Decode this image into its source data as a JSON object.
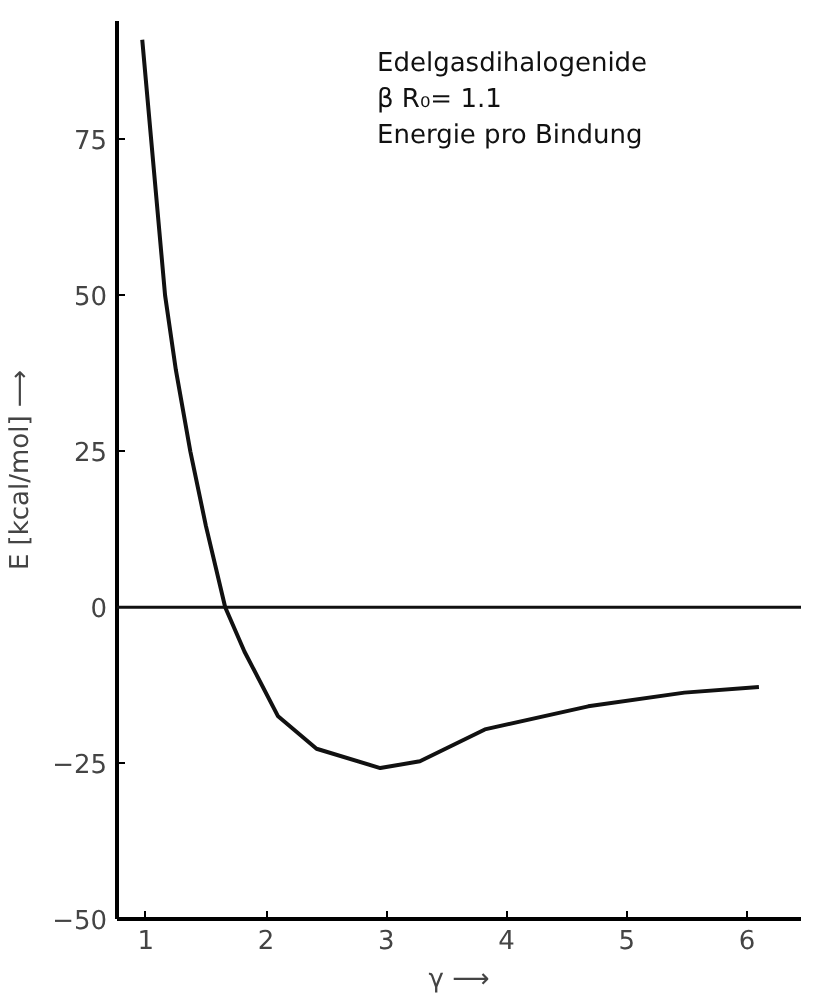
{
  "chart_data": {
    "type": "line",
    "xlabel": "γ ⟶",
    "ylabel": "E [kcal/mol] ⟶",
    "annotations": [
      "Edelgasdihalogenide",
      "β R₀= 1.1",
      "Energie pro Bindung"
    ],
    "x": [
      0.97,
      1.16,
      1.25,
      1.37,
      1.5,
      1.66,
      1.82,
      2.1,
      2.42,
      2.95,
      3.28,
      3.82,
      4.68,
      5.48,
      6.1
    ],
    "series": [
      {
        "color": "#111111",
        "values": [
          91,
          50,
          38,
          25,
          13,
          0,
          -7.1,
          -17.5,
          -22.7,
          -25.8,
          -24.7,
          -19.6,
          -15.9,
          -13.7,
          -12.8
        ]
      }
    ],
    "xlim": [
      0.76,
      6.45
    ],
    "ylim": [
      -50,
      94
    ],
    "xticks": [
      1,
      2,
      3,
      4,
      5,
      6
    ],
    "yticks": [
      -50,
      -25,
      0,
      25,
      50,
      75
    ],
    "ref_lines": [
      {
        "axis": "y",
        "value": 0,
        "color": "#111111"
      }
    ],
    "grid": false,
    "line_style": "solid"
  }
}
